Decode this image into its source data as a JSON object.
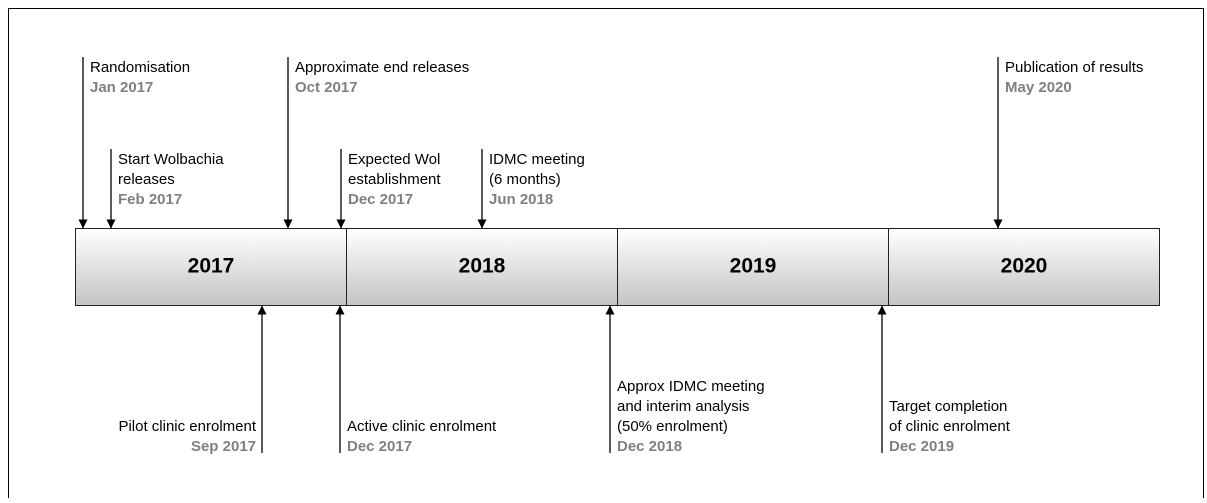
{
  "years": [
    "2017",
    "2018",
    "2019",
    "2020"
  ],
  "events_above": [
    {
      "lines": [
        "Randomisation"
      ],
      "date": "Jan 2017"
    },
    {
      "lines": [
        "Start Wolbachia",
        "releases"
      ],
      "date": "Feb 2017"
    },
    {
      "lines": [
        "Approximate end releases"
      ],
      "date": "Oct 2017"
    },
    {
      "lines": [
        "Expected Wol",
        "establishment"
      ],
      "date": "Dec 2017"
    },
    {
      "lines": [
        "IDMC meeting",
        "(6 months)"
      ],
      "date": "Jun 2018"
    },
    {
      "lines": [
        "Publication of results"
      ],
      "date": "May 2020"
    }
  ],
  "events_below": [
    {
      "lines": [
        "Pilot clinic enrolment"
      ],
      "date": "Sep 2017"
    },
    {
      "lines": [
        "Active clinic enrolment"
      ],
      "date": "Dec 2017"
    },
    {
      "lines": [
        "Approx IDMC meeting",
        "and interim analysis",
        "(50% enrolment)"
      ],
      "date": "Dec 2018"
    },
    {
      "lines": [
        "Target completion",
        "of clinic enrolment"
      ],
      "date": "Dec 2019"
    }
  ]
}
